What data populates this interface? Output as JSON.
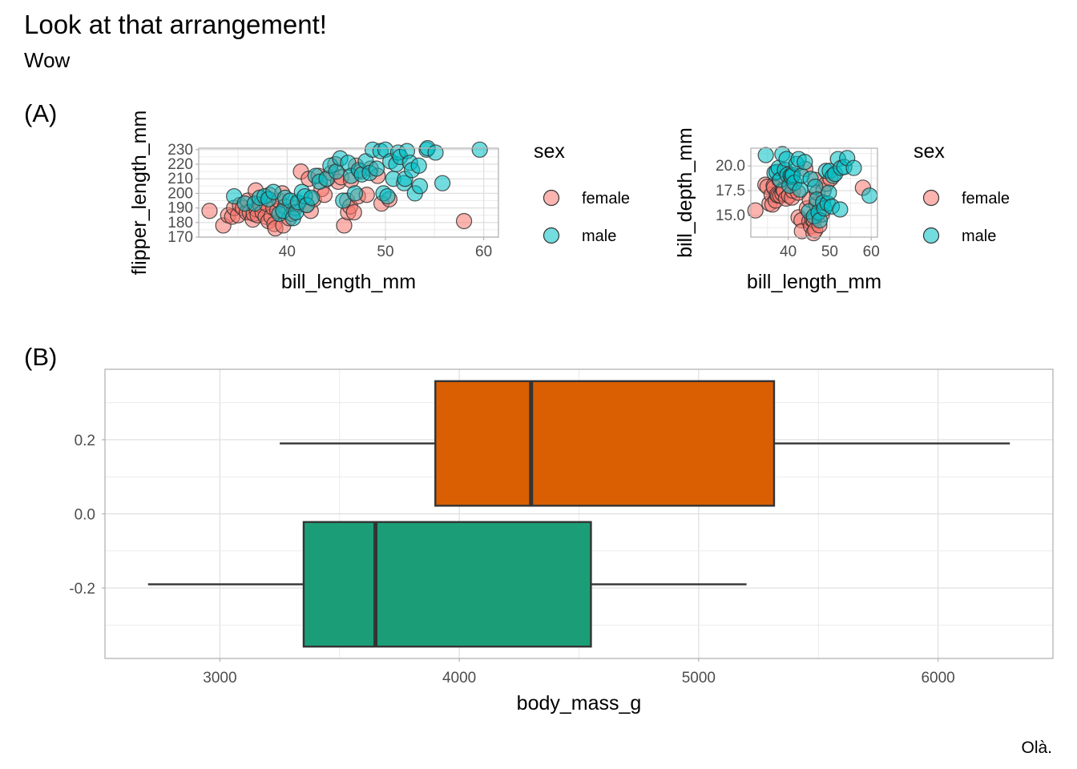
{
  "title": "Look at that arrangement!",
  "subtitle": "Wow",
  "caption": "Olà.",
  "colors": {
    "female": "#F8766D",
    "male": "#00BFC4",
    "box_top": "#D95F02",
    "box_bottom": "#1B9E77"
  },
  "chart_data": [
    {
      "panel_tag": "(A)",
      "type": "scatter",
      "xlabel": "bill_length_mm",
      "ylabel": "flipper_length_mm",
      "xlim": [
        31,
        61.5
      ],
      "ylim": [
        170,
        231
      ],
      "xticks": [
        "40",
        "50",
        "60"
      ],
      "yticks": [
        "170",
        "180",
        "190",
        "200",
        "210",
        "220",
        "230"
      ],
      "grid": true,
      "legend": {
        "title": "sex",
        "position": "right",
        "labels": [
          "female",
          "male"
        ]
      },
      "series": [
        {
          "name": "female",
          "points": [
            [
              32.1,
              188
            ],
            [
              33.5,
              178
            ],
            [
              34.0,
              185
            ],
            [
              34.4,
              184
            ],
            [
              34.6,
              190
            ],
            [
              35.0,
              185
            ],
            [
              35.2,
              192
            ],
            [
              35.5,
              190
            ],
            [
              35.9,
              187
            ],
            [
              36.0,
              195
            ],
            [
              36.2,
              187
            ],
            [
              36.5,
              182
            ],
            [
              36.6,
              186
            ],
            [
              36.8,
              202
            ],
            [
              36.9,
              189
            ],
            [
              37.0,
              185
            ],
            [
              37.3,
              192
            ],
            [
              37.5,
              187
            ],
            [
              37.8,
              184
            ],
            [
              37.9,
              193
            ],
            [
              38.1,
              181
            ],
            [
              38.2,
              199
            ],
            [
              38.4,
              184
            ],
            [
              38.6,
              190
            ],
            [
              38.7,
              179
            ],
            [
              38.8,
              176
            ],
            [
              39.0,
              188
            ],
            [
              39.2,
              195
            ],
            [
              39.5,
              200
            ],
            [
              39.6,
              178
            ],
            [
              39.8,
              191
            ],
            [
              40.2,
              183
            ],
            [
              40.5,
              186
            ],
            [
              40.8,
              190
            ],
            [
              41.1,
              193
            ],
            [
              41.4,
              215
            ],
            [
              41.9,
              192
            ],
            [
              42.2,
              210
            ],
            [
              42.4,
              188
            ],
            [
              42.7,
              196
            ],
            [
              43.2,
              212
            ],
            [
              43.5,
              203
            ],
            [
              43.8,
              199
            ],
            [
              44.1,
              210
            ],
            [
              44.5,
              214
            ],
            [
              44.9,
              220
            ],
            [
              45.2,
              208
            ],
            [
              45.5,
              211
            ],
            [
              45.8,
              178
            ],
            [
              46.1,
              195
            ],
            [
              46.2,
              187
            ],
            [
              46.4,
              191
            ],
            [
              46.5,
              209
            ],
            [
              46.8,
              187
            ],
            [
              47.0,
              219
            ],
            [
              47.2,
              198
            ],
            [
              47.5,
              215
            ],
            [
              48.1,
              199
            ],
            [
              48.5,
              217
            ],
            [
              49.2,
              212
            ],
            [
              49.6,
              193
            ],
            [
              50.4,
              196
            ],
            [
              58.0,
              181
            ]
          ]
        },
        {
          "name": "male",
          "points": [
            [
              34.6,
              198
            ],
            [
              35.7,
              193
            ],
            [
              36.7,
              193
            ],
            [
              37.2,
              197
            ],
            [
              37.7,
              198
            ],
            [
              38.1,
              196
            ],
            [
              38.6,
              201
            ],
            [
              39.2,
              186
            ],
            [
              39.6,
              188
            ],
            [
              39.8,
              197
            ],
            [
              40.3,
              195
            ],
            [
              40.6,
              183
            ],
            [
              40.9,
              187
            ],
            [
              41.1,
              194
            ],
            [
              41.5,
              201
            ],
            [
              41.8,
              198
            ],
            [
              42.0,
              192
            ],
            [
              42.5,
              197
            ],
            [
              42.9,
              212
            ],
            [
              43.3,
              208
            ],
            [
              44.0,
              210
            ],
            [
              44.4,
              219
            ],
            [
              45.0,
              215
            ],
            [
              45.4,
              224
            ],
            [
              45.7,
              195
            ],
            [
              46.2,
              221
            ],
            [
              46.5,
              212
            ],
            [
              46.9,
              200
            ],
            [
              47.3,
              216
            ],
            [
              47.6,
              213
            ],
            [
              48.0,
              222
            ],
            [
              48.4,
              214
            ],
            [
              48.7,
              230
            ],
            [
              49.1,
              217
            ],
            [
              49.5,
              229
            ],
            [
              49.8,
              200
            ],
            [
              50.0,
              230
            ],
            [
              50.2,
              198
            ],
            [
              50.5,
              222
            ],
            [
              50.8,
              210
            ],
            [
              51.1,
              220
            ],
            [
              51.3,
              228
            ],
            [
              51.5,
              225
            ],
            [
              51.9,
              207
            ],
            [
              52.0,
              210
            ],
            [
              52.2,
              229
            ],
            [
              52.5,
              221
            ],
            [
              52.7,
              216
            ],
            [
              53.0,
              200
            ],
            [
              53.4,
              219
            ],
            [
              53.5,
              205
            ],
            [
              54.2,
              230
            ],
            [
              54.3,
              231
            ],
            [
              55.1,
              228
            ],
            [
              55.8,
              207
            ],
            [
              59.6,
              230
            ]
          ]
        }
      ]
    },
    {
      "type": "scatter",
      "xlabel": "bill_length_mm",
      "ylabel": "bill_depth_mm",
      "xlim": [
        31,
        61.5
      ],
      "ylim": [
        12.8,
        21.8
      ],
      "xticks": [
        "40",
        "50",
        "60"
      ],
      "yticks": [
        "15.0",
        "17.5",
        "20.0"
      ],
      "grid": true,
      "legend": {
        "title": "sex",
        "position": "right",
        "labels": [
          "female",
          "male"
        ]
      },
      "series": [
        {
          "name": "female",
          "points": [
            [
              32.1,
              15.5
            ],
            [
              34.5,
              18.1
            ],
            [
              35.0,
              17.9
            ],
            [
              35.5,
              16.2
            ],
            [
              36.0,
              17.1
            ],
            [
              36.2,
              16.1
            ],
            [
              36.5,
              18.0
            ],
            [
              36.6,
              17.8
            ],
            [
              37.0,
              16.5
            ],
            [
              37.3,
              17.1
            ],
            [
              37.6,
              17.0
            ],
            [
              37.9,
              18.6
            ],
            [
              38.1,
              17.0
            ],
            [
              38.6,
              17.2
            ],
            [
              38.8,
              17.6
            ],
            [
              39.0,
              17.5
            ],
            [
              39.5,
              16.7
            ],
            [
              40.2,
              17.0
            ],
            [
              40.9,
              16.8
            ],
            [
              41.1,
              17.5
            ],
            [
              42.4,
              17.3
            ],
            [
              42.5,
              14.8
            ],
            [
              43.2,
              14.5
            ],
            [
              43.3,
              13.4
            ],
            [
              44.1,
              19.7
            ],
            [
              44.5,
              15.7
            ],
            [
              45.1,
              14.4
            ],
            [
              45.2,
              16.6
            ],
            [
              45.5,
              13.9
            ],
            [
              45.8,
              14.6
            ],
            [
              46.1,
              13.2
            ],
            [
              46.2,
              14.5
            ],
            [
              46.4,
              18.6
            ],
            [
              46.5,
              13.5
            ],
            [
              46.8,
              16.1
            ],
            [
              47.0,
              17.3
            ],
            [
              47.5,
              14.0
            ],
            [
              48.1,
              15.1
            ],
            [
              48.5,
              17.5
            ],
            [
              49.2,
              18.2
            ],
            [
              50.2,
              18.7
            ],
            [
              58.0,
              17.8
            ]
          ]
        },
        {
          "name": "male",
          "points": [
            [
              34.6,
              21.1
            ],
            [
              36.7,
              19.3
            ],
            [
              37.2,
              19.4
            ],
            [
              37.7,
              19.8
            ],
            [
              38.1,
              18.6
            ],
            [
              38.6,
              21.2
            ],
            [
              39.2,
              19.6
            ],
            [
              39.6,
              20.7
            ],
            [
              39.8,
              19.1
            ],
            [
              40.3,
              18.0
            ],
            [
              40.6,
              19.0
            ],
            [
              40.9,
              18.9
            ],
            [
              41.1,
              19.1
            ],
            [
              41.5,
              18.3
            ],
            [
              42.0,
              20.2
            ],
            [
              42.5,
              20.7
            ],
            [
              42.9,
              17.6
            ],
            [
              43.2,
              19.0
            ],
            [
              44.0,
              20.4
            ],
            [
              45.0,
              15.4
            ],
            [
              45.4,
              18.7
            ],
            [
              46.2,
              14.9
            ],
            [
              46.5,
              17.9
            ],
            [
              46.9,
              16.6
            ],
            [
              47.3,
              15.3
            ],
            [
              47.6,
              14.5
            ],
            [
              48.4,
              16.3
            ],
            [
              48.7,
              15.7
            ],
            [
              49.1,
              19.5
            ],
            [
              49.5,
              16.2
            ],
            [
              49.8,
              17.3
            ],
            [
              50.0,
              19.5
            ],
            [
              50.5,
              15.9
            ],
            [
              50.8,
              19.0
            ],
            [
              51.3,
              19.2
            ],
            [
              52.0,
              20.7
            ],
            [
              52.5,
              15.6
            ],
            [
              52.7,
              19.8
            ],
            [
              53.5,
              19.9
            ],
            [
              54.2,
              20.8
            ],
            [
              55.8,
              19.8
            ],
            [
              59.6,
              17.0
            ]
          ]
        }
      ]
    },
    {
      "panel_tag": "(B)",
      "type": "boxplot",
      "xlabel": "body_mass_g",
      "ylabel": "",
      "xlim": [
        2520,
        6480
      ],
      "ylim": [
        -0.39,
        0.39
      ],
      "xticks": [
        "3000",
        "4000",
        "5000",
        "6000"
      ],
      "yticks": [
        "0.2",
        "0.0",
        "-0.2"
      ],
      "grid": true,
      "boxes": [
        {
          "center": 0.19,
          "min": 3250,
          "q1": 3900,
          "median": 4300,
          "q3": 5315,
          "max": 6300
        },
        {
          "center": -0.19,
          "min": 2700,
          "q1": 3350,
          "median": 3650,
          "q3": 4550,
          "max": 5200
        }
      ]
    }
  ]
}
